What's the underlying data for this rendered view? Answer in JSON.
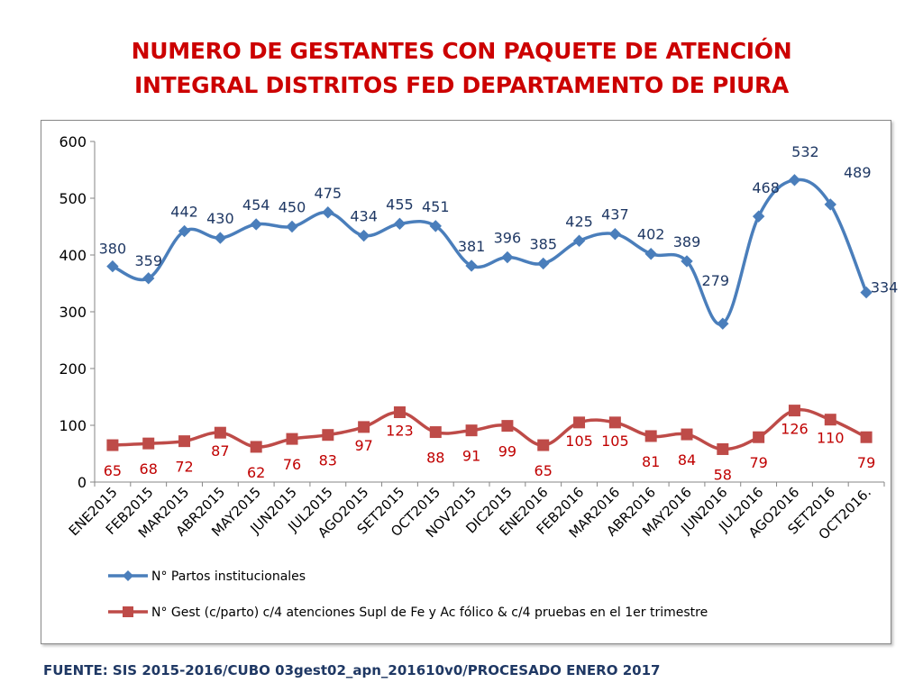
{
  "page": {
    "title_line1": "NUMERO DE GESTANTES CON PAQUETE DE ATENCIÓN",
    "title_line2": "INTEGRAL  DISTRITOS FED DEPARTAMENTO DE PIURA",
    "source": "FUENTE: SIS 2015-2016/CUBO 03gest02_apn_201610v0/PROCESADO ENERO 2017"
  },
  "colors": {
    "title": "#cc0000",
    "series1": "#4a7ebb",
    "series2": "#be4b48",
    "source": "#1f3864"
  },
  "chart_data": {
    "type": "line",
    "categories": [
      "ENE2015",
      "FEB2015",
      "MAR2015",
      "ABR2015",
      "MAY2015",
      "JUN2015",
      "JUL2015",
      "AGO2015",
      "SET2015",
      "OCT2015",
      "NOV2015",
      "DIC2015",
      "ENE2016",
      "FEB2016",
      "MAR2016",
      "ABR2016",
      "MAY2016",
      "JUN2016",
      "JUL2016",
      "AGO2016",
      "SET2016",
      "OCT2016."
    ],
    "ylim": [
      0,
      600
    ],
    "yticks": [
      "0",
      "100",
      "200",
      "300",
      "400",
      "500",
      "600"
    ],
    "series": [
      {
        "name": "N° Partos institucionales",
        "marker": "diamond",
        "values": [
          380,
          359,
          442,
          430,
          454,
          450,
          475,
          434,
          455,
          451,
          381,
          396,
          385,
          425,
          437,
          402,
          389,
          279,
          468,
          532,
          489,
          334
        ],
        "labels": [
          "380",
          "359",
          "442",
          "430",
          "454",
          "450",
          "475",
          "434",
          "455",
          "451",
          "381",
          "396",
          "385",
          "425",
          "437",
          "402",
          "389",
          "279",
          "468",
          "532",
          "489",
          "334"
        ]
      },
      {
        "name": "N° Gest (c/parto) c/4 atenciones Supl de Fe y Ac fólico & c/4 pruebas en el 1er trimestre",
        "marker": "square",
        "values": [
          65,
          68,
          72,
          87,
          62,
          76,
          83,
          97,
          123,
          88,
          91,
          99,
          65,
          105,
          105,
          81,
          84,
          58,
          79,
          126,
          110,
          79
        ],
        "labels": [
          "65",
          "68",
          "72",
          "87",
          "62",
          "76",
          "83",
          "97",
          "123",
          "88",
          "91",
          "99",
          "65",
          "105",
          "105",
          "81",
          "84",
          "58",
          "79",
          "126",
          "110",
          "79"
        ]
      }
    ]
  }
}
